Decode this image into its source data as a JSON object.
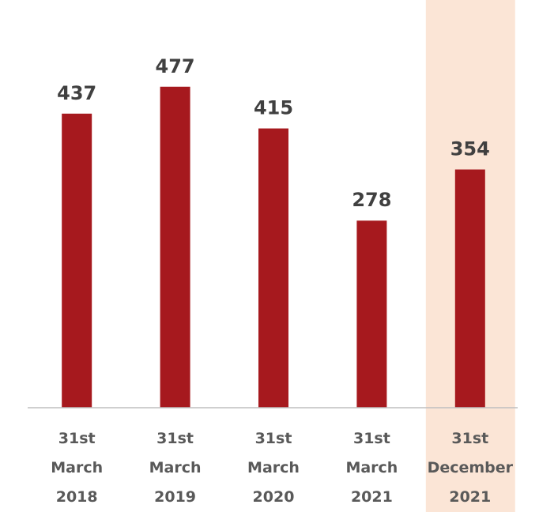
{
  "chart_data": {
    "type": "bar",
    "categories": [
      "31st\nMarch\n2018",
      "31st\nMarch\n2019",
      "31st\nMarch\n2020",
      "31st\nMarch\n2021",
      "31st\nDecember\n2021"
    ],
    "values": [
      437,
      477,
      415,
      278,
      354
    ],
    "color": "#a6191e",
    "highlight": {
      "index": 4,
      "color": "#fbe5d6"
    },
    "ylim": [
      0,
      600
    ]
  }
}
